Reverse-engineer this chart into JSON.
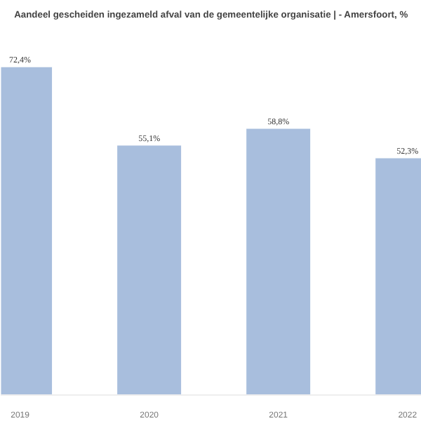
{
  "chart_data": {
    "type": "bar",
    "title": "Aandeel gescheiden ingezameld afval van de gemeentelijke organisatie | - Amersfoort, %",
    "categories": [
      "2019",
      "2020",
      "2021",
      "2022"
    ],
    "values": [
      72.4,
      55.1,
      58.8,
      52.3
    ],
    "value_labels": [
      "72,4%",
      "55,1%",
      "58,8%",
      "52,3%"
    ],
    "color": "#a8bedd",
    "tick_labels": "x",
    "grid": false
  }
}
